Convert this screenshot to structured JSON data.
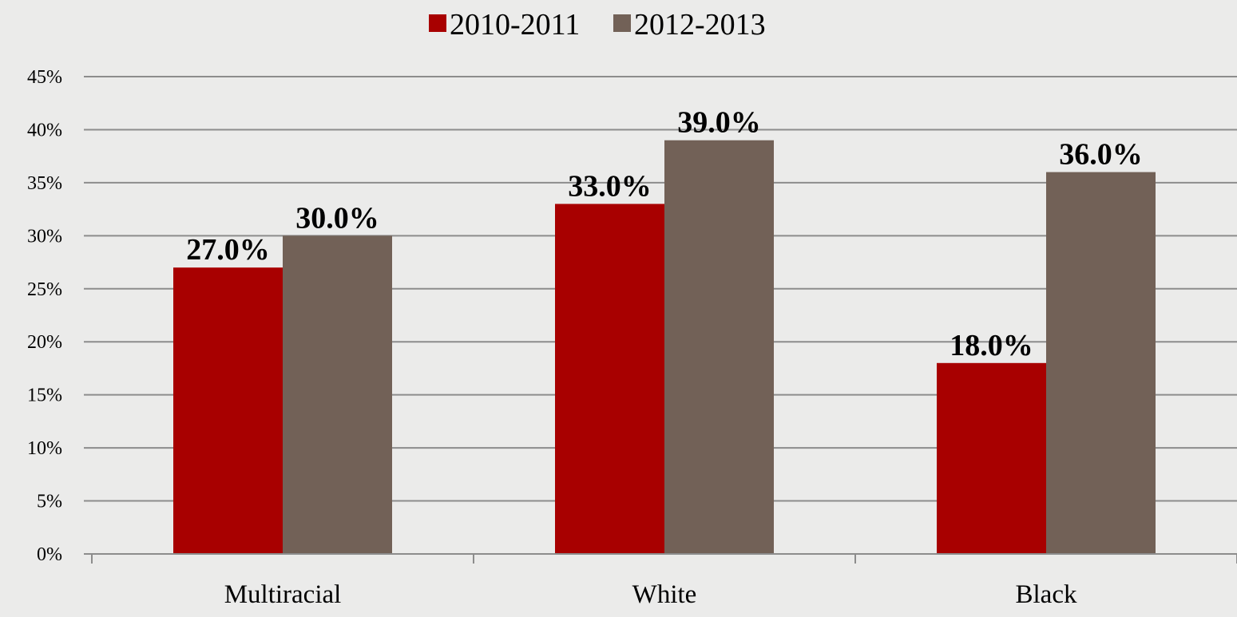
{
  "chart_data": {
    "type": "bar",
    "title": "",
    "xlabel": "",
    "ylabel": "",
    "categories": [
      "Multiracial",
      "White",
      "Black"
    ],
    "series": [
      {
        "name": "2010-2011",
        "values": [
          27.0,
          33.0,
          18.0
        ],
        "labels": [
          "27.0%",
          "33.0%",
          "18.0%"
        ],
        "color": "#a80000"
      },
      {
        "name": "2012-2013",
        "values": [
          30.0,
          39.0,
          36.0
        ],
        "labels": [
          "30.0%",
          "39.0%",
          "36.0%"
        ],
        "color": "#726157"
      }
    ],
    "ylim": [
      0,
      45
    ],
    "yticks": [
      0,
      5,
      10,
      15,
      20,
      25,
      30,
      35,
      40,
      45
    ],
    "ytick_labels": [
      "0%",
      "5%",
      "10%",
      "15%",
      "20%",
      "25%",
      "30%",
      "35%",
      "40%",
      "45%"
    ],
    "grid": true,
    "legend_position": "top-center",
    "colors": {
      "gridline": "#8c8c8c",
      "axis": "#8c8c8c",
      "background": "#ebebea"
    }
  }
}
